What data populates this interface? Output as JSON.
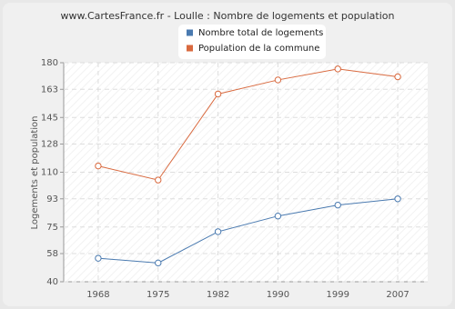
{
  "chart_data": {
    "type": "line",
    "title": "www.CartesFrance.fr - Loulle : Nombre de logements et population",
    "y_label": "Logements et population",
    "categories": [
      "1968",
      "1975",
      "1982",
      "1990",
      "1999",
      "2007"
    ],
    "series": [
      {
        "name": "Nombre total de logements",
        "color": "#4a7ab0",
        "values": [
          55,
          52,
          72,
          82,
          89,
          93
        ]
      },
      {
        "name": "Population de la commune",
        "color": "#d9693e",
        "values": [
          114,
          105,
          160,
          169,
          176,
          171
        ]
      }
    ],
    "ylim": [
      40,
      180
    ],
    "yticks": [
      40,
      58,
      75,
      93,
      110,
      128,
      145,
      163,
      180
    ],
    "grid": true
  }
}
